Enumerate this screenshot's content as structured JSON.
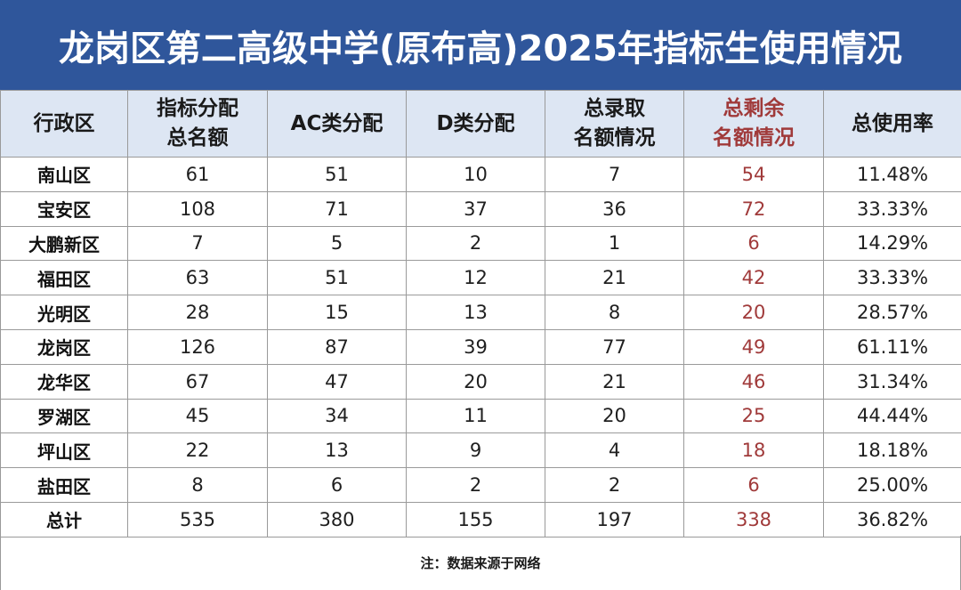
{
  "title": "龙岗区第二高级中学(原布高)2025年指标生使用情况",
  "headers": [
    {
      "lines": [
        "行政区"
      ]
    },
    {
      "lines": [
        "指标分配",
        "总名额"
      ]
    },
    {
      "lines": [
        "AC类分配"
      ]
    },
    {
      "lines": [
        "D类分配"
      ]
    },
    {
      "lines": [
        "总录取",
        "名额情况"
      ]
    },
    {
      "lines": [
        "总剩余",
        "名额情况"
      ]
    },
    {
      "lines": [
        "总使用率"
      ]
    }
  ],
  "rows": [
    [
      "南山区",
      "61",
      "51",
      "10",
      "7",
      "54",
      "11.48%"
    ],
    [
      "宝安区",
      "108",
      "71",
      "37",
      "36",
      "72",
      "33.33%"
    ],
    [
      "大鹏新区",
      "7",
      "5",
      "2",
      "1",
      "6",
      "14.29%"
    ],
    [
      "福田区",
      "63",
      "51",
      "12",
      "21",
      "42",
      "33.33%"
    ],
    [
      "光明区",
      "28",
      "15",
      "13",
      "8",
      "20",
      "28.57%"
    ],
    [
      "龙岗区",
      "126",
      "87",
      "39",
      "77",
      "49",
      "61.11%"
    ],
    [
      "龙华区",
      "67",
      "47",
      "20",
      "21",
      "46",
      "31.34%"
    ],
    [
      "罗湖区",
      "45",
      "34",
      "11",
      "20",
      "25",
      "44.44%"
    ],
    [
      "坪山区",
      "22",
      "13",
      "9",
      "4",
      "18",
      "18.18%"
    ],
    [
      "盐田区",
      "8",
      "6",
      "2",
      "2",
      "6",
      "25.00%"
    ],
    [
      "总计",
      "535",
      "380",
      "155",
      "197",
      "338",
      "36.82%"
    ]
  ],
  "note": "注：数据来源于网络",
  "colors": {
    "title_bg": "#2f569b",
    "header_bg": "#dde6f3",
    "remain_text": "#a03a3a"
  }
}
